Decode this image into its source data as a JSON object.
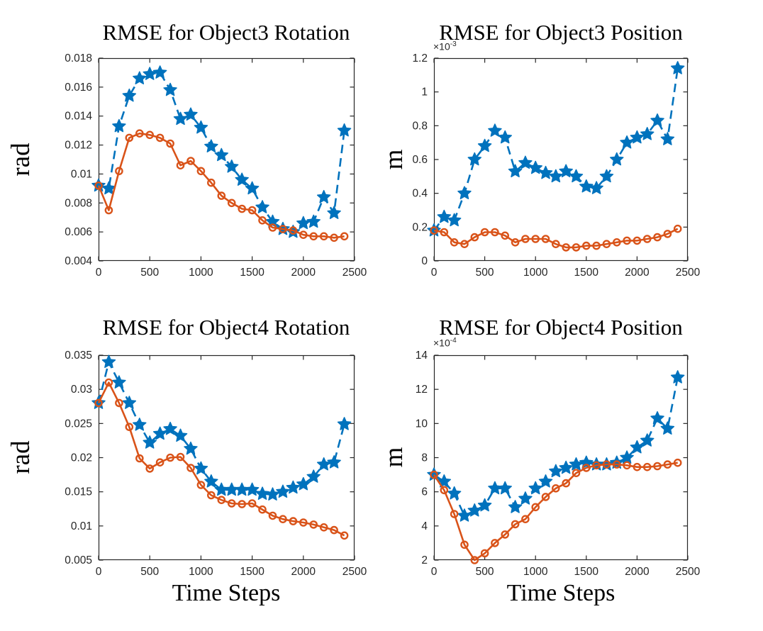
{
  "figure": {
    "background": "#ffffff"
  },
  "colors": {
    "series_blue": "#0072BD",
    "series_orange": "#D95319",
    "axis": "#262626",
    "title": "#000000"
  },
  "chart_data": [
    {
      "type": "line",
      "title": "RMSE for Object3 Rotation",
      "ylabel": "rad",
      "xlabel": "",
      "exponent_base": "",
      "exponent_power": "",
      "xlim": [
        0,
        2500
      ],
      "ylim": [
        0.004,
        0.018
      ],
      "grid": false,
      "legend": null,
      "x_ticks": [
        0,
        500,
        1000,
        1500,
        2000,
        2500
      ],
      "x_tick_labels": [
        "0",
        "500",
        "1000",
        "1500",
        "2000",
        "2500"
      ],
      "y_ticks": [
        0.004,
        0.006,
        0.008,
        0.01,
        0.012,
        0.014,
        0.016,
        0.018
      ],
      "y_tick_labels": [
        "0.004",
        "0.006",
        "0.008",
        "0.01",
        "0.012",
        "0.014",
        "0.016",
        "0.018"
      ],
      "x": [
        0,
        100,
        200,
        300,
        400,
        500,
        600,
        700,
        800,
        900,
        1000,
        1100,
        1200,
        1300,
        1400,
        1500,
        1600,
        1700,
        1800,
        1900,
        2000,
        2100,
        2200,
        2300,
        2400
      ],
      "series": [
        {
          "name": "series-1-dashed-star",
          "color": "#0072BD",
          "line": "dashed",
          "marker": "star",
          "values": [
            0.0092,
            0.009,
            0.0133,
            0.0154,
            0.0166,
            0.0169,
            0.017,
            0.0158,
            0.0138,
            0.0141,
            0.0132,
            0.0119,
            0.0113,
            0.0105,
            0.0096,
            0.009,
            0.0077,
            0.0067,
            0.0062,
            0.006,
            0.0066,
            0.0067,
            0.0084,
            0.0073,
            0.013
          ]
        },
        {
          "name": "series-2-solid-circle",
          "color": "#D95319",
          "line": "solid",
          "marker": "circle",
          "values": [
            0.0092,
            0.0075,
            0.0102,
            0.0125,
            0.0128,
            0.0127,
            0.0125,
            0.0121,
            0.0106,
            0.0109,
            0.0102,
            0.0094,
            0.0085,
            0.008,
            0.0076,
            0.0075,
            0.0068,
            0.0063,
            0.0062,
            0.0061,
            0.0058,
            0.0057,
            0.0057,
            0.0056,
            0.0057
          ]
        }
      ]
    },
    {
      "type": "line",
      "title": "RMSE for Object3 Position",
      "ylabel": "m",
      "xlabel": "",
      "exponent_base": "×10",
      "exponent_power": "-3",
      "xlim": [
        0,
        2500
      ],
      "ylim": [
        0,
        1.2
      ],
      "grid": false,
      "legend": null,
      "x_ticks": [
        0,
        500,
        1000,
        1500,
        2000,
        2500
      ],
      "x_tick_labels": [
        "0",
        "500",
        "1000",
        "1500",
        "2000",
        "2500"
      ],
      "y_ticks": [
        0,
        0.2,
        0.4,
        0.6,
        0.8,
        1,
        1.2
      ],
      "y_tick_labels": [
        "0",
        "0.2",
        "0.4",
        "0.6",
        "0.8",
        "1",
        "1.2"
      ],
      "x": [
        0,
        100,
        200,
        300,
        400,
        500,
        600,
        700,
        800,
        900,
        1000,
        1100,
        1200,
        1300,
        1400,
        1500,
        1600,
        1700,
        1800,
        1900,
        2000,
        2100,
        2200,
        2300,
        2400
      ],
      "series": [
        {
          "name": "series-1-dashed-star",
          "color": "#0072BD",
          "line": "dashed",
          "marker": "star",
          "values": [
            0.18,
            0.26,
            0.24,
            0.4,
            0.6,
            0.68,
            0.77,
            0.73,
            0.53,
            0.58,
            0.55,
            0.52,
            0.5,
            0.53,
            0.5,
            0.44,
            0.43,
            0.5,
            0.6,
            0.7,
            0.73,
            0.75,
            0.83,
            0.72,
            1.14
          ]
        },
        {
          "name": "series-2-solid-circle",
          "color": "#D95319",
          "line": "solid",
          "marker": "circle",
          "values": [
            0.18,
            0.17,
            0.11,
            0.1,
            0.14,
            0.17,
            0.17,
            0.15,
            0.11,
            0.13,
            0.13,
            0.13,
            0.1,
            0.08,
            0.08,
            0.09,
            0.09,
            0.1,
            0.11,
            0.12,
            0.12,
            0.13,
            0.14,
            0.16,
            0.19
          ]
        }
      ]
    },
    {
      "type": "line",
      "title": "RMSE for Object4 Rotation",
      "ylabel": "rad",
      "xlabel": "Time Steps",
      "exponent_base": "",
      "exponent_power": "",
      "xlim": [
        0,
        2500
      ],
      "ylim": [
        0.005,
        0.035
      ],
      "grid": false,
      "legend": null,
      "x_ticks": [
        0,
        500,
        1000,
        1500,
        2000,
        2500
      ],
      "x_tick_labels": [
        "0",
        "500",
        "1000",
        "1500",
        "2000",
        "2500"
      ],
      "y_ticks": [
        0.005,
        0.01,
        0.015,
        0.02,
        0.025,
        0.03,
        0.035
      ],
      "y_tick_labels": [
        "0.005",
        "0.01",
        "0.015",
        "0.02",
        "0.025",
        "0.03",
        "0.035"
      ],
      "x": [
        0,
        100,
        200,
        300,
        400,
        500,
        600,
        700,
        800,
        900,
        1000,
        1100,
        1200,
        1300,
        1400,
        1500,
        1600,
        1700,
        1800,
        1900,
        2000,
        2100,
        2200,
        2300,
        2400
      ],
      "series": [
        {
          "name": "series-1-dashed-star",
          "color": "#0072BD",
          "line": "dashed",
          "marker": "star",
          "values": [
            0.028,
            0.034,
            0.031,
            0.028,
            0.0248,
            0.0222,
            0.0235,
            0.0242,
            0.0232,
            0.0213,
            0.0184,
            0.0165,
            0.0153,
            0.0153,
            0.0153,
            0.0153,
            0.0147,
            0.0146,
            0.015,
            0.0156,
            0.0161,
            0.0172,
            0.019,
            0.0193,
            0.0249
          ]
        },
        {
          "name": "series-2-solid-circle",
          "color": "#D95319",
          "line": "solid",
          "marker": "circle",
          "values": [
            0.028,
            0.031,
            0.028,
            0.0245,
            0.0199,
            0.0184,
            0.0193,
            0.02,
            0.0201,
            0.0185,
            0.016,
            0.0145,
            0.0138,
            0.0133,
            0.0132,
            0.0133,
            0.0124,
            0.0115,
            0.011,
            0.0107,
            0.0105,
            0.0102,
            0.0098,
            0.0094,
            0.0086
          ]
        }
      ]
    },
    {
      "type": "line",
      "title": "RMSE for Object4 Position",
      "ylabel": "m",
      "xlabel": "Time Steps",
      "exponent_base": "×10",
      "exponent_power": "-4",
      "xlim": [
        0,
        2500
      ],
      "ylim": [
        2,
        14
      ],
      "grid": false,
      "legend": null,
      "x_ticks": [
        0,
        500,
        1000,
        1500,
        2000,
        2500
      ],
      "x_tick_labels": [
        "0",
        "500",
        "1000",
        "1500",
        "2000",
        "2500"
      ],
      "y_ticks": [
        2,
        4,
        6,
        8,
        10,
        12,
        14
      ],
      "y_tick_labels": [
        "2",
        "4",
        "6",
        "8",
        "10",
        "12",
        "14"
      ],
      "x": [
        0,
        100,
        200,
        300,
        400,
        500,
        600,
        700,
        800,
        900,
        1000,
        1100,
        1200,
        1300,
        1400,
        1500,
        1600,
        1700,
        1800,
        1900,
        2000,
        2100,
        2200,
        2300,
        2400
      ],
      "series": [
        {
          "name": "series-1-dashed-star",
          "color": "#0072BD",
          "line": "dashed",
          "marker": "star",
          "values": [
            7.0,
            6.6,
            5.9,
            4.6,
            4.9,
            5.2,
            6.2,
            6.2,
            5.1,
            5.6,
            6.2,
            6.6,
            7.2,
            7.4,
            7.6,
            7.7,
            7.6,
            7.6,
            7.7,
            8.0,
            8.6,
            9.0,
            10.3,
            9.7,
            12.7
          ]
        },
        {
          "name": "series-2-solid-circle",
          "color": "#D95319",
          "line": "solid",
          "marker": "circle",
          "values": [
            7.0,
            6.1,
            4.7,
            2.9,
            2.0,
            2.4,
            3.0,
            3.5,
            4.1,
            4.4,
            5.1,
            5.7,
            6.2,
            6.5,
            7.1,
            7.4,
            7.55,
            7.6,
            7.6,
            7.55,
            7.45,
            7.45,
            7.5,
            7.6,
            7.7
          ]
        }
      ]
    }
  ]
}
